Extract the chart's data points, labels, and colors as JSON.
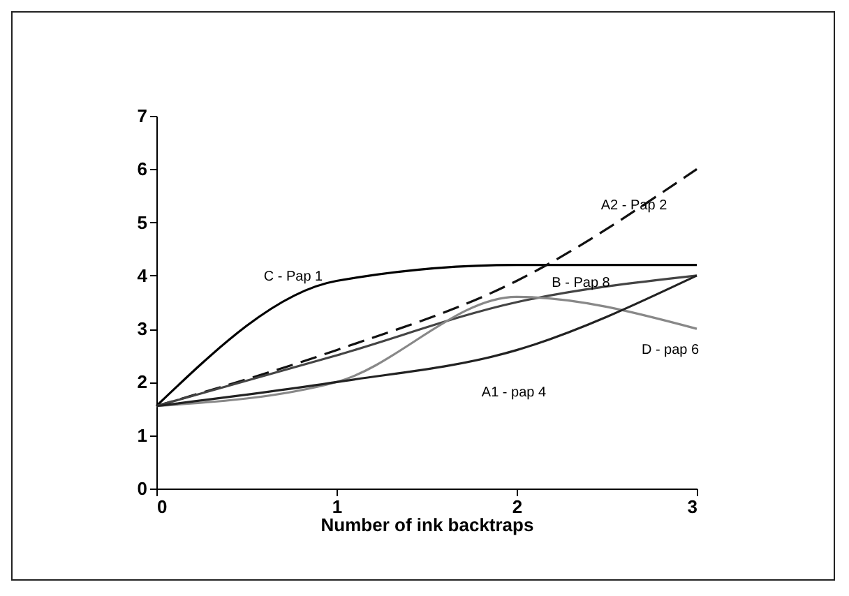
{
  "chart_data": {
    "type": "line",
    "xlabel": "Number of ink backtraps",
    "x": [
      0,
      1,
      2,
      3
    ],
    "xlim": [
      0,
      3
    ],
    "xticks": [
      0,
      1,
      2,
      3
    ],
    "ylim": [
      0,
      7
    ],
    "yticks": [
      0,
      1,
      2,
      3,
      4,
      5,
      6,
      7
    ],
    "grid": false,
    "marker": "none",
    "series": [
      {
        "name": "C - Pap 1",
        "color": "#000000",
        "values": [
          1.55,
          3.9,
          4.2,
          4.2
        ],
        "line_style": "solid"
      },
      {
        "name": "A2 - Pap 2",
        "color": "#111111",
        "values": [
          1.55,
          2.6,
          3.9,
          6.0
        ],
        "line_style": "dashed"
      },
      {
        "name": "B - Pap 8",
        "color": "#444444",
        "values": [
          1.55,
          2.5,
          3.5,
          4.0
        ],
        "line_style": "solid"
      },
      {
        "name": "D - pap 6",
        "color": "#888888",
        "values": [
          1.55,
          2.0,
          3.6,
          3.0
        ],
        "line_style": "solid"
      },
      {
        "name": "A1 - pap 4",
        "color": "#222222",
        "values": [
          1.55,
          2.0,
          2.6,
          4.0
        ],
        "line_style": "solid"
      }
    ]
  }
}
